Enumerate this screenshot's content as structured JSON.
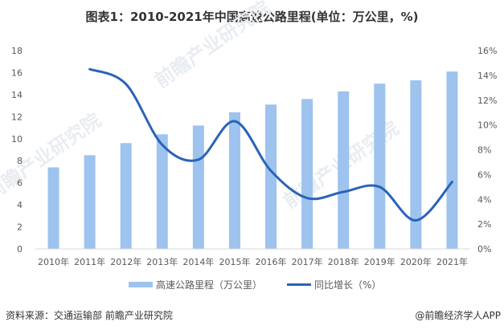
{
  "title": "图表1：2010-2021年中国高速公路里程(单位：万公里，%)",
  "legend": {
    "bar_label": "高速公路里程（万公里）",
    "line_label": "同比增长（%）"
  },
  "footer": {
    "source": "资料来源：交通运输部 前瞻产业研究院",
    "credit": "@前瞻经济学人APP"
  },
  "watermarks": [
    "前瞻产业研究院",
    "前瞻产业研究院",
    "前瞻产业研究院"
  ],
  "colors": {
    "bar": "#9dc3ee",
    "line": "#2a63b8",
    "axis": "#d9d9d9",
    "text": "#595959"
  },
  "chart_data": {
    "type": "bar",
    "title": "图表1：2010-2021年中国高速公路里程(单位：万公里，%)",
    "categories": [
      "2010年",
      "2011年",
      "2012年",
      "2013年",
      "2014年",
      "2015年",
      "2016年",
      "2017年",
      "2018年",
      "2019年",
      "2020年",
      "2021年"
    ],
    "series": [
      {
        "name": "高速公路里程（万公里）",
        "type": "bar",
        "axis": "left",
        "values": [
          7.4,
          8.5,
          9.6,
          10.4,
          11.2,
          12.4,
          13.1,
          13.6,
          14.3,
          15.0,
          15.3,
          16.1
        ]
      },
      {
        "name": "同比增长（%）",
        "type": "line",
        "axis": "right",
        "smooth": true,
        "values": [
          null,
          14.5,
          13.3,
          8.4,
          7.2,
          10.3,
          6.3,
          4.1,
          4.6,
          5.0,
          2.3,
          5.4
        ]
      }
    ],
    "left_axis": {
      "ylim": [
        0,
        18
      ],
      "ticks": [
        "0",
        "2",
        "4",
        "6",
        "8",
        "10",
        "12",
        "14",
        "16",
        "18"
      ]
    },
    "right_axis": {
      "ylim": [
        0,
        16
      ],
      "ticks": [
        "0%",
        "2%",
        "4%",
        "6%",
        "8%",
        "10%",
        "12%",
        "14%",
        "16%"
      ]
    },
    "xlabel": "",
    "ylabel": "",
    "grid": false,
    "legend_position": "bottom"
  }
}
